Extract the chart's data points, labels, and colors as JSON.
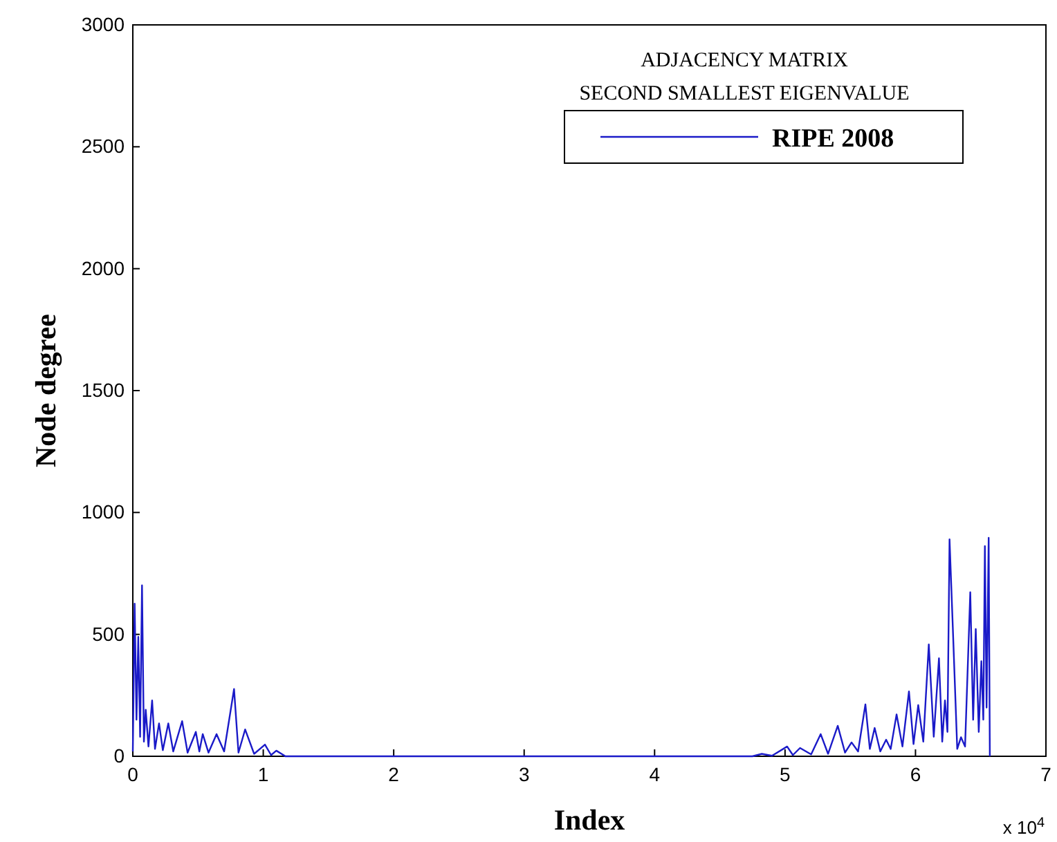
{
  "chart_data": {
    "type": "line",
    "title": "ADJACENCY MATRIX",
    "subtitle": "SECOND SMALLEST EIGENVALUE",
    "xlabel": "Index",
    "ylabel": "Node degree",
    "annotations": [
      "x 10$^{4}$"
    ],
    "series": [
      {
        "name": "RIPE 2008",
        "color": "#1a1ac8",
        "x": [
          0,
          0.014,
          0.028,
          0.042,
          0.056,
          0.0705,
          0.085,
          0.099,
          0.12,
          0.148,
          0.17,
          0.201,
          0.23,
          0.272,
          0.31,
          0.378,
          0.42,
          0.483,
          0.51,
          0.536,
          0.58,
          0.642,
          0.7,
          0.776,
          0.81,
          0.861,
          0.93,
          1.013,
          1.06,
          1.1,
          1.17,
          4.75,
          4.822,
          4.9,
          5.016,
          5.06,
          5.115,
          5.2,
          5.273,
          5.33,
          5.404,
          5.46,
          5.51,
          5.56,
          5.616,
          5.65,
          5.687,
          5.73,
          5.775,
          5.81,
          5.855,
          5.9,
          5.95,
          5.985,
          6.021,
          6.06,
          6.102,
          6.14,
          6.18,
          6.205,
          6.226,
          6.245,
          6.261,
          6.286,
          6.32,
          6.349,
          6.38,
          6.42,
          6.442,
          6.462,
          6.485,
          6.505,
          6.52,
          6.532,
          6.545,
          6.561,
          6.57
        ],
        "values": [
          20,
          626,
          150,
          490,
          80,
          701,
          60,
          191,
          40,
          229,
          30,
          135,
          25,
          135,
          20,
          144,
          15,
          100,
          20,
          91,
          15,
          91,
          20,
          276,
          15,
          110,
          10,
          48,
          5,
          23,
          0,
          0,
          10,
          2,
          40,
          5,
          34,
          8,
          91,
          10,
          125,
          15,
          57,
          20,
          213,
          30,
          116,
          20,
          68,
          30,
          172,
          40,
          266,
          50,
          210,
          60,
          459,
          80,
          402,
          60,
          229,
          100,
          890,
          531,
          30,
          78,
          40,
          673,
          150,
          522,
          100,
          390,
          150,
          862,
          200,
          896,
          0
        ]
      }
    ],
    "xlim": [
      0,
      7
    ],
    "ylim": [
      0,
      3000
    ],
    "xticks": [
      0,
      1,
      2,
      3,
      4,
      5,
      6,
      7
    ],
    "yticks": [
      0,
      500,
      1000,
      1500,
      2000,
      2500,
      3000
    ],
    "legend": "top right",
    "grid": false
  }
}
